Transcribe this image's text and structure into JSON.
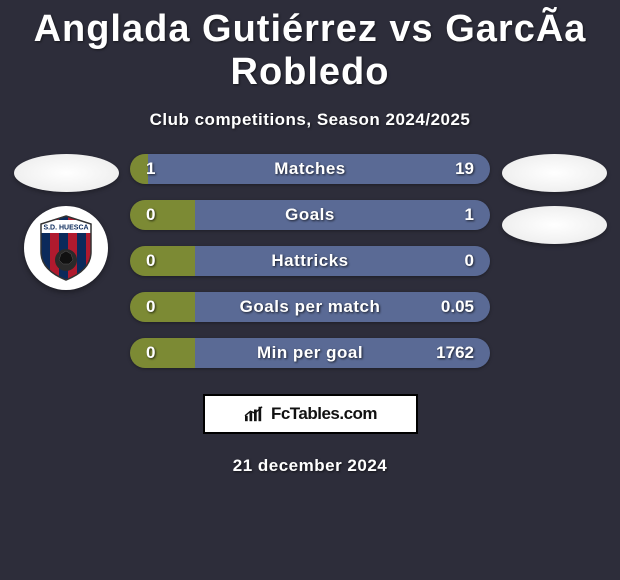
{
  "title": "Anglada Gutiérrez vs GarcÃa Robledo",
  "subtitle": "Club competitions, Season 2024/2025",
  "date": "21 december 2024",
  "brand": "FcTables.com",
  "colors": {
    "left_bar": "#7c8a34",
    "right_bar": "#5a6a95",
    "background": "#2d2d3a"
  },
  "crest": {
    "stripe1": "#0b2a5b",
    "stripe2": "#b01a2e",
    "text": "S.D. HUESCA",
    "ball": "#2a2a2a"
  },
  "rows": [
    {
      "label": "Matches",
      "left": "1",
      "right": "19",
      "left_pct": 5,
      "right_pct": 95
    },
    {
      "label": "Goals",
      "left": "0",
      "right": "1",
      "left_pct": 18,
      "right_pct": 82
    },
    {
      "label": "Hattricks",
      "left": "0",
      "right": "0",
      "left_pct": 18,
      "right_pct": 82
    },
    {
      "label": "Goals per match",
      "left": "0",
      "right": "0.05",
      "left_pct": 18,
      "right_pct": 82
    },
    {
      "label": "Min per goal",
      "left": "0",
      "right": "1762",
      "left_pct": 18,
      "right_pct": 82
    }
  ]
}
